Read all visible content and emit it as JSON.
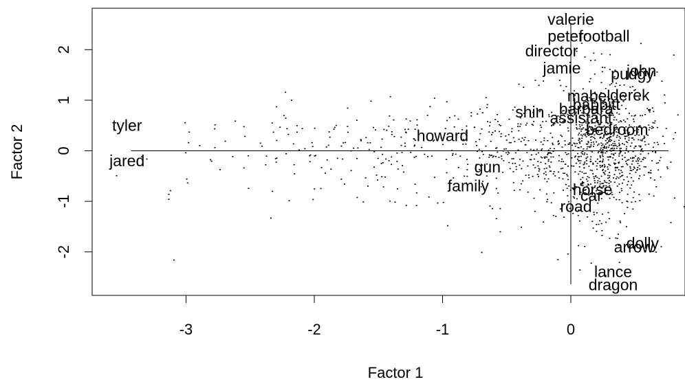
{
  "chart_data": {
    "type": "scatter",
    "xlabel": "Factor 1",
    "ylabel": "Factor 2",
    "xlim": [
      -3.6,
      0.88
    ],
    "ylim": [
      -2.8,
      2.8
    ],
    "x_ticks": [
      -3,
      -2,
      -1,
      0
    ],
    "y_ticks": [
      -2,
      -1,
      0,
      1,
      2
    ],
    "x_tick_labels": [
      "-3",
      "-2",
      "-1",
      "0"
    ],
    "y_tick_labels": [
      "-2",
      "-1",
      "0",
      "1",
      "2"
    ],
    "reference_lines": {
      "horizontal_at_y": 0,
      "vertical_at_x": 0
    },
    "labeled_points": [
      {
        "label": "valerie",
        "x": 0.0,
        "y": 2.6
      },
      {
        "label": "peter",
        "x": -0.04,
        "y": 2.27
      },
      {
        "label": "football",
        "x": 0.26,
        "y": 2.27
      },
      {
        "label": "director",
        "x": -0.15,
        "y": 1.98
      },
      {
        "label": "jamie",
        "x": -0.07,
        "y": 1.64
      },
      {
        "label": "john",
        "x": 0.55,
        "y": 1.58
      },
      {
        "label": "pudgy",
        "x": 0.48,
        "y": 1.52
      },
      {
        "label": "derek",
        "x": 0.46,
        "y": 1.1
      },
      {
        "label": "mabel",
        "x": 0.14,
        "y": 1.09
      },
      {
        "label": "babbitt",
        "x": 0.2,
        "y": 0.92
      },
      {
        "label": "barbara",
        "x": 0.12,
        "y": 0.83
      },
      {
        "label": "shin",
        "x": -0.32,
        "y": 0.77
      },
      {
        "label": "assistant",
        "x": 0.08,
        "y": 0.65
      },
      {
        "label": "bedroom",
        "x": 0.36,
        "y": 0.42
      },
      {
        "label": "tyler",
        "x": -3.46,
        "y": 0.5
      },
      {
        "label": "howard",
        "x": -1.0,
        "y": 0.3
      },
      {
        "label": "jared",
        "x": -3.46,
        "y": -0.2
      },
      {
        "label": "gun",
        "x": -0.65,
        "y": -0.32
      },
      {
        "label": "family",
        "x": -0.8,
        "y": -0.69
      },
      {
        "label": "horse",
        "x": 0.17,
        "y": -0.77
      },
      {
        "label": "car",
        "x": 0.16,
        "y": -0.88
      },
      {
        "label": "road",
        "x": 0.04,
        "y": -1.1
      },
      {
        "label": "dolly",
        "x": 0.56,
        "y": -1.83
      },
      {
        "label": "arrow",
        "x": 0.49,
        "y": -1.9
      },
      {
        "label": "lance",
        "x": 0.33,
        "y": -2.39
      },
      {
        "label": "dragon",
        "x": 0.33,
        "y": -2.65
      }
    ],
    "point_cloud_description_for_generation": null
  }
}
